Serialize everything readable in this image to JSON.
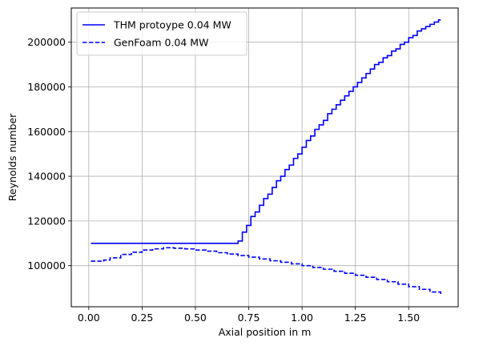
{
  "chart_data": {
    "type": "line",
    "xlabel": "Axial position in m",
    "ylabel": "Reynolds number",
    "xlim": [
      -0.082,
      1.732
    ],
    "ylim": [
      81600,
      215300
    ],
    "xticks": [
      0.0,
      0.25,
      0.5,
      0.75,
      1.0,
      1.25,
      1.5
    ],
    "xtick_labels": [
      "0.00",
      "0.25",
      "0.50",
      "0.75",
      "1.00",
      "1.25",
      "1.50"
    ],
    "yticks": [
      100000,
      120000,
      140000,
      160000,
      180000,
      200000
    ],
    "ytick_labels": [
      "100000",
      "120000",
      "140000",
      "160000",
      "180000",
      "200000"
    ],
    "grid": true,
    "legend_position": "top-left",
    "colors": {
      "series": "#0000ff",
      "grid": "#b0b0b0",
      "axis": "#000000",
      "legend_border": "#cccccc"
    },
    "series": [
      {
        "name": "THM protoype 0.04 MW",
        "style": "solid",
        "step": true,
        "x": [
          0.01,
          0.7,
          0.72,
          0.74,
          0.76,
          0.78,
          0.8,
          0.82,
          0.84,
          0.86,
          0.88,
          0.9,
          0.92,
          0.94,
          0.96,
          0.98,
          1.0,
          1.02,
          1.04,
          1.06,
          1.08,
          1.1,
          1.12,
          1.14,
          1.16,
          1.18,
          1.2,
          1.22,
          1.24,
          1.26,
          1.28,
          1.3,
          1.32,
          1.34,
          1.36,
          1.38,
          1.4,
          1.42,
          1.44,
          1.46,
          1.48,
          1.5,
          1.52,
          1.54,
          1.56,
          1.58,
          1.6,
          1.62,
          1.64,
          1.65
        ],
        "y": [
          110000,
          111000,
          115000,
          118000,
          122000,
          124000,
          127000,
          130000,
          132000,
          135000,
          138000,
          140000,
          143000,
          145000,
          148000,
          150000,
          153000,
          156000,
          158000,
          161000,
          163000,
          165000,
          168000,
          170000,
          172000,
          174000,
          176000,
          178000,
          180000,
          182000,
          184000,
          186000,
          188000,
          190000,
          191000,
          193000,
          194000,
          196000,
          197000,
          199000,
          200000,
          202000,
          203000,
          205000,
          206000,
          207000,
          208000,
          209000,
          210000,
          210000
        ]
      },
      {
        "name": "GenFoam 0.04 MW",
        "style": "dashed",
        "step": true,
        "x": [
          0.01,
          0.07,
          0.1,
          0.15,
          0.2,
          0.25,
          0.3,
          0.35,
          0.4,
          0.45,
          0.5,
          0.55,
          0.6,
          0.65,
          0.7,
          0.75,
          0.8,
          0.85,
          0.9,
          0.95,
          1.0,
          1.05,
          1.1,
          1.15,
          1.2,
          1.25,
          1.3,
          1.35,
          1.4,
          1.45,
          1.5,
          1.55,
          1.6,
          1.65
        ],
        "y": [
          102000,
          102500,
          103500,
          105000,
          106000,
          107000,
          107500,
          108000,
          107800,
          107500,
          107000,
          106500,
          105800,
          105200,
          104500,
          103800,
          103000,
          102200,
          101500,
          100800,
          100000,
          99200,
          98400,
          97500,
          96600,
          95700,
          94800,
          93800,
          92800,
          91700,
          90600,
          89400,
          88200,
          87000
        ]
      }
    ]
  }
}
